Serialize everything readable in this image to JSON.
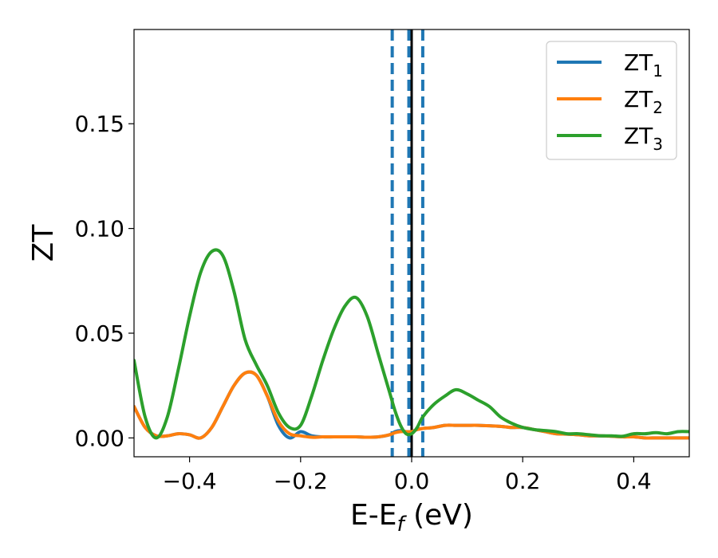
{
  "chart_data": {
    "type": "line",
    "xlabel": "E-E",
    "xlabel_sub": "f",
    "xlabel_unit": " (eV)",
    "ylabel": "ZT",
    "xlim": [
      -0.5,
      0.5
    ],
    "ylim": [
      -0.009,
      0.195
    ],
    "grid": false,
    "legend_position": "top-right",
    "x_ticks": [
      -0.4,
      -0.2,
      0.0,
      0.2,
      0.4
    ],
    "x_tick_labels": [
      "−0.4",
      "−0.2",
      "0.0",
      "0.2",
      "0.4"
    ],
    "y_ticks": [
      0.0,
      0.05,
      0.1,
      0.15
    ],
    "y_tick_labels": [
      "0.00",
      "0.05",
      "0.10",
      "0.15"
    ],
    "vertical_lines": [
      {
        "x": 0.0,
        "style": "solid",
        "color": "#000000"
      },
      {
        "x": -0.035,
        "style": "dashed",
        "color": "#1f77b4"
      },
      {
        "x": -0.005,
        "style": "dashed",
        "color": "#1f77b4"
      },
      {
        "x": 0.02,
        "style": "dashed",
        "color": "#1f77b4"
      }
    ],
    "series": [
      {
        "name": "ZT",
        "sub": "1",
        "color": "#1f77b4",
        "x": [
          -0.5,
          -0.48,
          -0.46,
          -0.44,
          -0.42,
          -0.4,
          -0.38,
          -0.36,
          -0.34,
          -0.32,
          -0.3,
          -0.28,
          -0.26,
          -0.24,
          -0.22,
          -0.2,
          -0.18,
          -0.16,
          -0.14,
          -0.12,
          -0.1,
          -0.08,
          -0.06,
          -0.04,
          -0.03,
          -0.02,
          -0.01,
          0.0,
          0.01,
          0.02,
          0.04,
          0.06,
          0.08,
          0.1,
          0.12,
          0.14,
          0.16,
          0.18,
          0.2,
          0.22,
          0.24,
          0.26,
          0.28,
          0.3,
          0.32,
          0.34,
          0.36,
          0.38,
          0.4,
          0.42,
          0.44,
          0.46,
          0.48,
          0.5
        ],
        "y": [
          0.015,
          0.005,
          0.001,
          0.001,
          0.002,
          0.0015,
          0.0,
          0.005,
          0.015,
          0.025,
          0.031,
          0.03,
          0.02,
          0.006,
          0.0,
          0.003,
          0.001,
          0.0005,
          0.0005,
          0.0005,
          0.0005,
          0.0003,
          0.0005,
          0.0015,
          0.003,
          0.0035,
          0.003,
          0.003,
          0.004,
          0.0045,
          0.005,
          0.006,
          0.006,
          0.006,
          0.006,
          0.0058,
          0.0055,
          0.005,
          0.005,
          0.004,
          0.003,
          0.002,
          0.0018,
          0.0015,
          0.001,
          0.001,
          0.0008,
          0.0005,
          0.0005,
          0.0,
          0.0,
          0.0,
          0.0,
          0.0
        ]
      },
      {
        "name": "ZT",
        "sub": "2",
        "color": "#ff7f0e",
        "x": [
          -0.5,
          -0.48,
          -0.46,
          -0.44,
          -0.42,
          -0.4,
          -0.38,
          -0.36,
          -0.34,
          -0.32,
          -0.3,
          -0.28,
          -0.26,
          -0.24,
          -0.22,
          -0.2,
          -0.18,
          -0.16,
          -0.14,
          -0.12,
          -0.1,
          -0.08,
          -0.06,
          -0.04,
          -0.03,
          -0.02,
          -0.01,
          0.0,
          0.01,
          0.02,
          0.04,
          0.06,
          0.08,
          0.1,
          0.12,
          0.14,
          0.16,
          0.18,
          0.2,
          0.22,
          0.24,
          0.26,
          0.28,
          0.3,
          0.32,
          0.34,
          0.36,
          0.38,
          0.4,
          0.42,
          0.44,
          0.46,
          0.48,
          0.5
        ],
        "y": [
          0.015,
          0.005,
          0.001,
          0.001,
          0.002,
          0.0015,
          0.0,
          0.005,
          0.015,
          0.025,
          0.031,
          0.03,
          0.02,
          0.008,
          0.002,
          0.001,
          0.0003,
          0.0005,
          0.0005,
          0.0005,
          0.0005,
          0.0003,
          0.0005,
          0.0015,
          0.0025,
          0.003,
          0.003,
          0.003,
          0.004,
          0.0045,
          0.005,
          0.006,
          0.006,
          0.006,
          0.006,
          0.0058,
          0.0055,
          0.005,
          0.005,
          0.004,
          0.003,
          0.002,
          0.0018,
          0.0015,
          0.001,
          0.001,
          0.0008,
          0.0005,
          0.0005,
          0.0,
          0.0,
          0.0,
          0.0,
          0.0
        ]
      },
      {
        "name": "ZT",
        "sub": "3",
        "color": "#2ca02c",
        "x": [
          -0.5,
          -0.48,
          -0.46,
          -0.44,
          -0.42,
          -0.4,
          -0.38,
          -0.36,
          -0.34,
          -0.32,
          -0.3,
          -0.28,
          -0.26,
          -0.24,
          -0.22,
          -0.2,
          -0.18,
          -0.16,
          -0.14,
          -0.12,
          -0.1,
          -0.08,
          -0.06,
          -0.04,
          -0.03,
          -0.02,
          -0.01,
          0.0,
          0.01,
          0.02,
          0.04,
          0.06,
          0.08,
          0.1,
          0.12,
          0.14,
          0.16,
          0.18,
          0.2,
          0.22,
          0.24,
          0.26,
          0.28,
          0.3,
          0.32,
          0.34,
          0.36,
          0.38,
          0.4,
          0.42,
          0.44,
          0.46,
          0.48,
          0.5
        ],
        "y": [
          0.037,
          0.01,
          0.0,
          0.01,
          0.033,
          0.058,
          0.079,
          0.089,
          0.087,
          0.07,
          0.047,
          0.035,
          0.025,
          0.012,
          0.005,
          0.006,
          0.02,
          0.037,
          0.052,
          0.063,
          0.067,
          0.058,
          0.04,
          0.022,
          0.013,
          0.006,
          0.002,
          0.002,
          0.005,
          0.01,
          0.016,
          0.02,
          0.023,
          0.021,
          0.018,
          0.015,
          0.01,
          0.007,
          0.005,
          0.004,
          0.0035,
          0.003,
          0.002,
          0.002,
          0.0015,
          0.001,
          0.001,
          0.0008,
          0.002,
          0.002,
          0.0025,
          0.002,
          0.003,
          0.003
        ]
      }
    ]
  }
}
